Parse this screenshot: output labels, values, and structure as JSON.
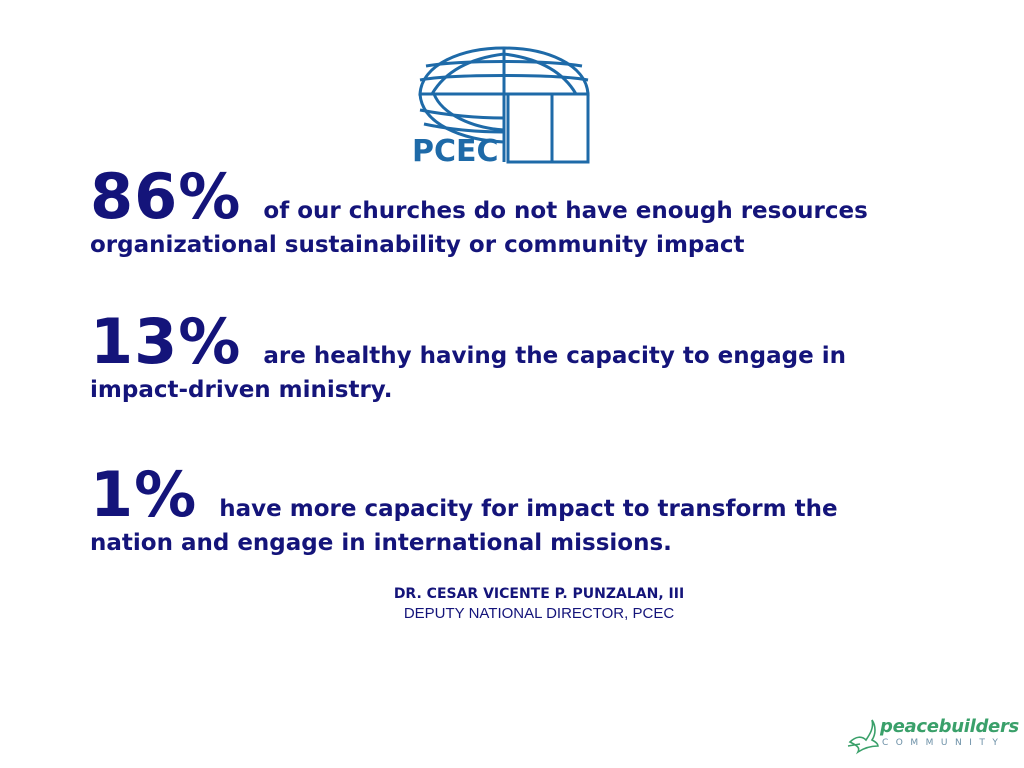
{
  "logo": {
    "text": "PCEC",
    "color": "#1e6aa8"
  },
  "stats": [
    {
      "value": "86%",
      "lead": "of our churches do not have enough resources",
      "cont": "organizational sustainability or community impact"
    },
    {
      "value": "13%",
      "lead": "are healthy having the capacity to engage in",
      "cont": "impact-driven ministry."
    },
    {
      "value": "1%",
      "lead": "have more capacity for impact to transform the",
      "cont": "nation and engage in international missions."
    }
  ],
  "attribution": {
    "name": "DR. CESAR VICENTE P. PUNZALAN, III",
    "role": "DEPUTY NATIONAL DIRECTOR, PCEC"
  },
  "footer_logo": {
    "word1": "peacebuilders",
    "word2": "COMMUNITY",
    "colors": {
      "word1": "#3aa06a",
      "word2": "#6b8fa6"
    }
  },
  "colors": {
    "text": "#14147a",
    "logo": "#1e6aa8"
  }
}
